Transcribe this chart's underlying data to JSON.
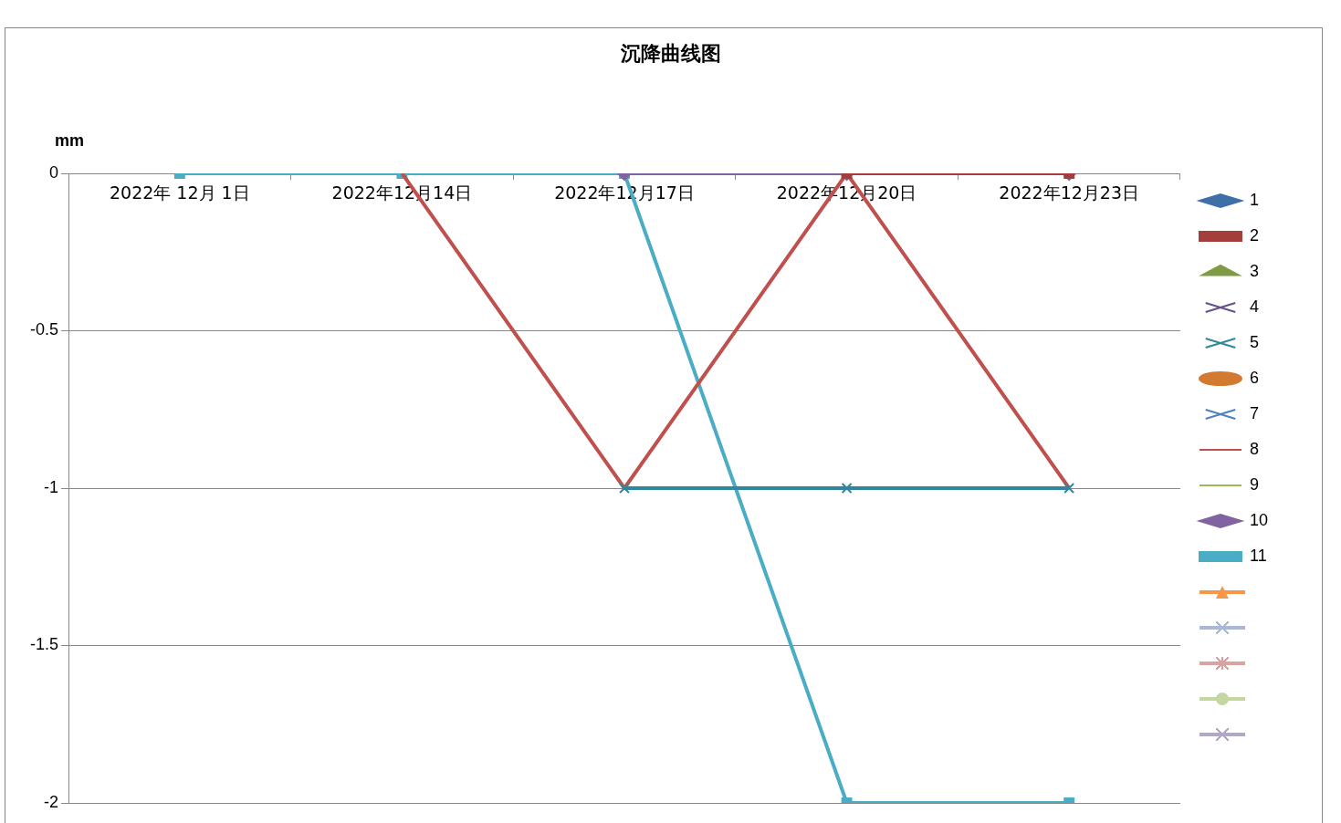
{
  "chart_data": {
    "type": "line",
    "title": "沉降曲线图",
    "ylabel": "mm",
    "categories": [
      "2022年 12月 1日",
      "2022年12月14日",
      "2022年12月17日",
      "2022年12月20日",
      "2022年12月23日"
    ],
    "ylim": [
      -2,
      0
    ],
    "yticks": [
      0,
      -0.5,
      -1,
      -1.5,
      -2
    ],
    "grid": "y",
    "legend": "right",
    "series": [
      {
        "name": "1",
        "color": "#3f6fa8",
        "marker": "diamond",
        "values": [
          null,
          null,
          null,
          null,
          null
        ]
      },
      {
        "name": "2",
        "color": "#a33e3b",
        "marker": "square",
        "values": [
          null,
          null,
          null,
          0,
          0
        ]
      },
      {
        "name": "3",
        "color": "#7f9c44",
        "marker": "triangle",
        "values": [
          null,
          null,
          null,
          null,
          null
        ]
      },
      {
        "name": "4",
        "color": "#66508a",
        "marker": "cross",
        "values": [
          null,
          null,
          null,
          null,
          null
        ]
      },
      {
        "name": "5",
        "color": "#31869c",
        "marker": "cross",
        "values": [
          null,
          null,
          -1,
          -1,
          -1
        ]
      },
      {
        "name": "6",
        "color": "#d27a30",
        "marker": "circle",
        "values": [
          null,
          null,
          null,
          null,
          null
        ]
      },
      {
        "name": "7",
        "color": "#4f81bd",
        "marker": "cross",
        "values": [
          null,
          null,
          null,
          null,
          null
        ]
      },
      {
        "name": "8",
        "color": "#c0504d",
        "marker": "none",
        "values": [
          null,
          0,
          -1,
          0,
          -1
        ]
      },
      {
        "name": "9",
        "color": "#9bbb59",
        "marker": "none",
        "values": [
          null,
          null,
          null,
          null,
          null
        ]
      },
      {
        "name": "10",
        "color": "#8064a2",
        "marker": "diamond",
        "values": [
          null,
          null,
          0,
          0,
          0
        ]
      },
      {
        "name": "11",
        "color": "#4bacc6",
        "marker": "square",
        "values": [
          0,
          0,
          0,
          -2,
          -2
        ]
      },
      {
        "color": "#f79646",
        "marker": "triangle",
        "values": [
          null,
          null,
          null,
          null,
          null
        ]
      },
      {
        "color": "#a8b9d8",
        "marker": "cross",
        "values": [
          null,
          null,
          null,
          null,
          null
        ]
      },
      {
        "color": "#d9a3a2",
        "marker": "star",
        "values": [
          null,
          null,
          null,
          null,
          null
        ]
      },
      {
        "color": "#c4d7a0",
        "marker": "circle",
        "values": [
          null,
          null,
          null,
          null,
          null
        ]
      },
      {
        "color": "#b2a8c6",
        "marker": "cross",
        "values": [
          null,
          null,
          null,
          null,
          null
        ]
      }
    ]
  }
}
